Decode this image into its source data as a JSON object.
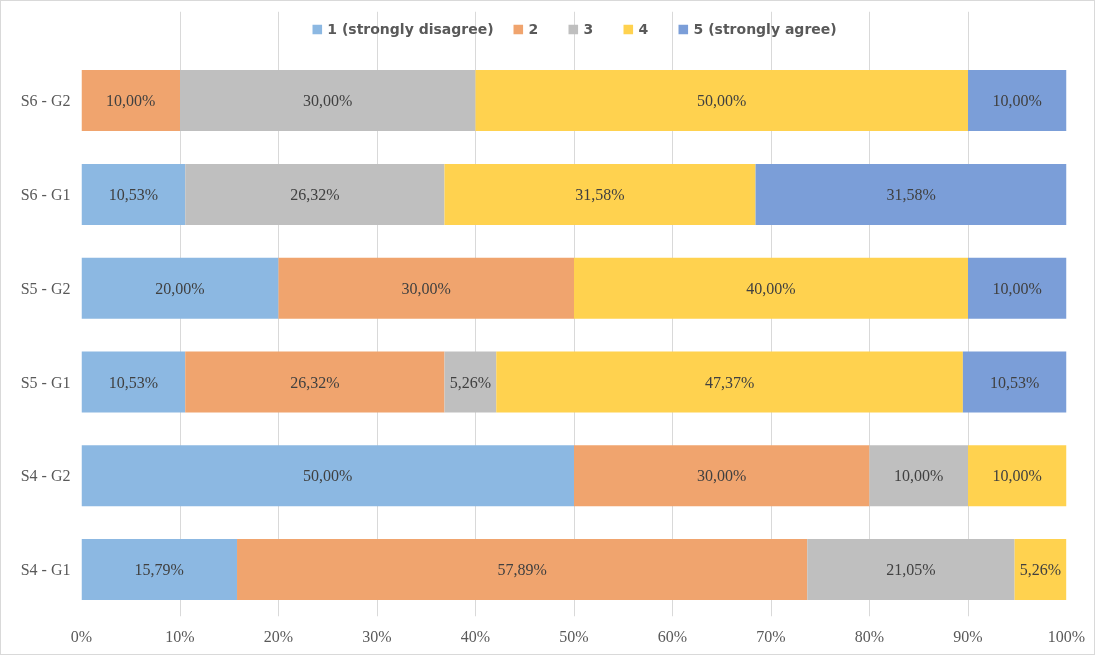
{
  "chart_data": {
    "type": "bar",
    "orientation": "horizontal",
    "stacked": true,
    "categories": [
      "S6 - G2",
      "S6 - G1",
      "S5 - G2",
      "S5 - G1",
      "S4 - G2",
      "S4 - G1"
    ],
    "series": [
      {
        "name": "1 (strongly disagree)",
        "color": "#8cb8e2",
        "values": [
          0,
          10.53,
          20,
          10.53,
          50,
          15.79
        ],
        "value_labels": [
          null,
          "10,53%",
          "20,00%",
          "10,53%",
          "50,00%",
          "15,79%"
        ]
      },
      {
        "name": "2",
        "color": "#f0a46e",
        "values": [
          10,
          0,
          30,
          26.32,
          30,
          57.89
        ],
        "value_labels": [
          "10,00%",
          null,
          "30,00%",
          "26,32%",
          "30,00%",
          "57,89%"
        ]
      },
      {
        "name": "3",
        "color": "#bfbfbf",
        "values": [
          30,
          26.32,
          0,
          5.26,
          10,
          21.05
        ],
        "value_labels": [
          "30,00%",
          "26,32%",
          null,
          "5,26%",
          "10,00%",
          "21,05%"
        ]
      },
      {
        "name": "4",
        "color": "#ffd24f",
        "values": [
          50,
          31.58,
          40,
          47.37,
          10,
          5.26
        ],
        "value_labels": [
          "50,00%",
          "31,58%",
          "40,00%",
          "47,37%",
          "10,00%",
          "5,26%"
        ]
      },
      {
        "name": "5 (strongly agree)",
        "color": "#7b9ed8",
        "values": [
          10,
          31.58,
          10,
          10.53,
          0,
          0
        ],
        "value_labels": [
          "10,00%",
          "31,58%",
          "10,00%",
          "10,53%",
          null,
          null
        ]
      }
    ],
    "xlim": [
      0,
      100
    ],
    "xticks": [
      {
        "value": 0,
        "label": "0%"
      },
      {
        "value": 10,
        "label": "10%"
      },
      {
        "value": 20,
        "label": "20%"
      },
      {
        "value": 30,
        "label": "30%"
      },
      {
        "value": 40,
        "label": "40%"
      },
      {
        "value": 50,
        "label": "50%"
      },
      {
        "value": 60,
        "label": "60%"
      },
      {
        "value": 70,
        "label": "70%"
      },
      {
        "value": 80,
        "label": "80%"
      },
      {
        "value": 90,
        "label": "90%"
      },
      {
        "value": 100,
        "label": "100%"
      }
    ],
    "grid": "x",
    "legend": "top"
  }
}
